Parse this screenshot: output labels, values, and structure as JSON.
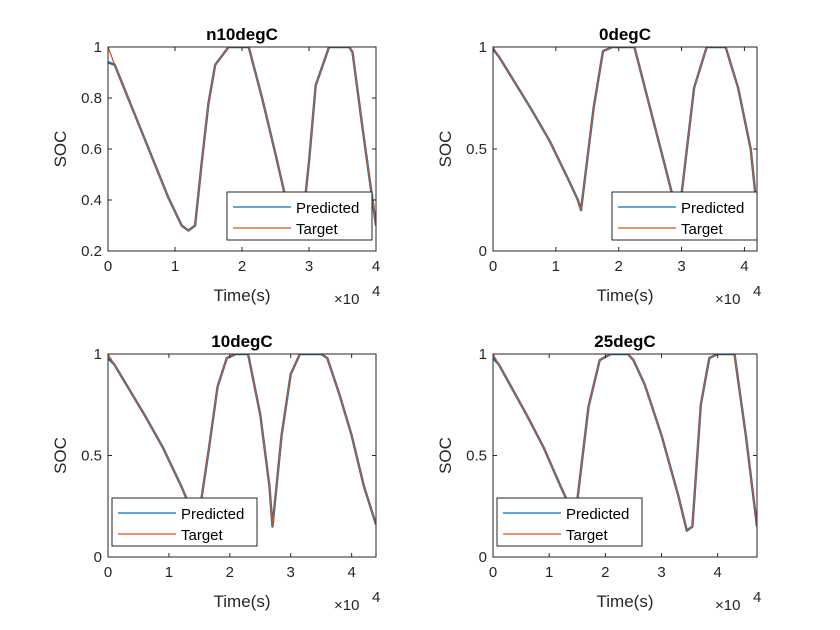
{
  "colors": {
    "predicted": "#0072BD",
    "target": "#D95319",
    "axis": "#262626"
  },
  "legend": {
    "entries": [
      "Predicted",
      "Target"
    ]
  },
  "chart_data": [
    {
      "type": "line",
      "title": "n10degC",
      "xlabel": "Time(s)",
      "ylabel": "SOC",
      "x_exponent_label": "×10",
      "x_exponent": "4",
      "xlim": [
        0,
        40000
      ],
      "ylim": [
        0.2,
        1.0
      ],
      "xticks": [
        0,
        10000,
        20000,
        30000,
        40000
      ],
      "xtick_labels": [
        "0",
        "1",
        "2",
        "3",
        "4"
      ],
      "yticks": [
        0.2,
        0.4,
        0.6,
        0.8,
        1.0
      ],
      "ytick_labels": [
        "0.2",
        "0.4",
        "0.6",
        "0.8",
        "1"
      ],
      "legend_position": "bottom-right",
      "series": [
        {
          "name": "Predicted",
          "x": [
            0,
            1000,
            3000,
            5000,
            7000,
            9000,
            11000,
            12000,
            13000,
            14000,
            15000,
            16000,
            18000,
            20000,
            21000,
            23000,
            25000,
            26500,
            28000,
            29000,
            30000,
            31000,
            33000,
            36000,
            36500,
            38000,
            40000
          ],
          "y": [
            0.94,
            0.93,
            0.8,
            0.67,
            0.54,
            0.41,
            0.3,
            0.28,
            0.3,
            0.55,
            0.78,
            0.93,
            1.0,
            1.0,
            1.0,
            0.8,
            0.58,
            0.41,
            0.3,
            0.3,
            0.55,
            0.85,
            1.0,
            1.0,
            0.98,
            0.68,
            0.3
          ]
        },
        {
          "name": "Target",
          "x": [
            0,
            1000,
            3000,
            5000,
            7000,
            9000,
            11000,
            12000,
            13000,
            14000,
            15000,
            16000,
            18000,
            20000,
            21000,
            23000,
            25000,
            26500,
            28000,
            29000,
            30000,
            31000,
            33000,
            36000,
            36500,
            38000,
            40000
          ],
          "y": [
            1.0,
            0.93,
            0.8,
            0.67,
            0.54,
            0.41,
            0.3,
            0.28,
            0.3,
            0.55,
            0.78,
            0.93,
            1.0,
            1.0,
            1.0,
            0.8,
            0.58,
            0.41,
            0.3,
            0.3,
            0.55,
            0.85,
            1.0,
            1.0,
            0.98,
            0.68,
            0.3
          ]
        }
      ]
    },
    {
      "type": "line",
      "title": "0degC",
      "xlabel": "Time(s)",
      "ylabel": "SOC",
      "x_exponent_label": "×10",
      "x_exponent": "4",
      "xlim": [
        0,
        42000
      ],
      "ylim": [
        0,
        1.0
      ],
      "xticks": [
        0,
        10000,
        20000,
        30000,
        40000
      ],
      "xtick_labels": [
        "0",
        "1",
        "2",
        "3",
        "4"
      ],
      "yticks": [
        0,
        0.5,
        1.0
      ],
      "ytick_labels": [
        "0",
        "0.5",
        "1"
      ],
      "legend_position": "bottom-right",
      "series": [
        {
          "name": "Predicted",
          "x": [
            0,
            1000,
            3000,
            6000,
            9000,
            12000,
            13500,
            14000,
            16000,
            17500,
            19000,
            21000,
            22500,
            25000,
            27500,
            28500,
            30000,
            32000,
            34000,
            36000,
            37000,
            39000,
            41000,
            42000
          ],
          "y": [
            0.99,
            0.95,
            0.85,
            0.7,
            0.54,
            0.35,
            0.25,
            0.2,
            0.7,
            0.98,
            1.0,
            1.0,
            1.0,
            0.7,
            0.4,
            0.28,
            0.28,
            0.8,
            1.0,
            1.0,
            1.0,
            0.8,
            0.5,
            0.2
          ]
        },
        {
          "name": "Target",
          "x": [
            0,
            1000,
            3000,
            6000,
            9000,
            12000,
            13500,
            14000,
            16000,
            17500,
            19000,
            21000,
            22500,
            25000,
            27500,
            28500,
            30000,
            32000,
            34000,
            36000,
            37000,
            39000,
            41000,
            42000
          ],
          "y": [
            1.0,
            0.95,
            0.85,
            0.7,
            0.54,
            0.35,
            0.25,
            0.2,
            0.7,
            0.98,
            1.0,
            1.0,
            1.0,
            0.7,
            0.4,
            0.28,
            0.28,
            0.8,
            1.0,
            1.0,
            1.0,
            0.8,
            0.5,
            0.2
          ]
        }
      ]
    },
    {
      "type": "line",
      "title": "10degC",
      "xlabel": "Time(s)",
      "ylabel": "SOC",
      "x_exponent_label": "×10",
      "x_exponent": "4",
      "xlim": [
        0,
        44000
      ],
      "ylim": [
        0,
        1.0
      ],
      "xticks": [
        0,
        10000,
        20000,
        30000,
        40000
      ],
      "xtick_labels": [
        "0",
        "1",
        "2",
        "3",
        "4"
      ],
      "yticks": [
        0,
        0.5,
        1.0
      ],
      "ytick_labels": [
        "0",
        "0.5",
        "1"
      ],
      "legend_position": "bottom-left",
      "series": [
        {
          "name": "Predicted",
          "x": [
            0,
            1000,
            3000,
            6000,
            9000,
            12000,
            13000,
            14000,
            15000,
            16500,
            18000,
            19500,
            21000,
            23000,
            25000,
            26500,
            27000,
            28500,
            30000,
            31500,
            33000,
            35000,
            36000,
            38000,
            40000,
            42000,
            44000
          ],
          "y": [
            0.98,
            0.95,
            0.85,
            0.7,
            0.54,
            0.35,
            0.28,
            0.25,
            0.22,
            0.52,
            0.84,
            0.98,
            1.0,
            1.0,
            0.7,
            0.35,
            0.15,
            0.6,
            0.9,
            1.0,
            1.0,
            1.0,
            0.98,
            0.8,
            0.6,
            0.35,
            0.16
          ]
        },
        {
          "name": "Target",
          "x": [
            0,
            1000,
            3000,
            6000,
            9000,
            12000,
            13000,
            14000,
            15000,
            16500,
            18000,
            19500,
            21000,
            23000,
            25000,
            26500,
            27000,
            28500,
            30000,
            31500,
            33000,
            35000,
            36000,
            38000,
            40000,
            42000,
            44000
          ],
          "y": [
            1.0,
            0.95,
            0.85,
            0.7,
            0.54,
            0.35,
            0.28,
            0.25,
            0.22,
            0.52,
            0.84,
            0.98,
            1.0,
            1.0,
            0.7,
            0.35,
            0.15,
            0.6,
            0.9,
            1.0,
            1.0,
            1.0,
            0.98,
            0.8,
            0.6,
            0.35,
            0.16
          ]
        }
      ]
    },
    {
      "type": "line",
      "title": "25degC",
      "xlabel": "Time(s)",
      "ylabel": "SOC",
      "x_exponent_label": "×10",
      "x_exponent": "4",
      "xlim": [
        0,
        47000
      ],
      "ylim": [
        0,
        1.0
      ],
      "xticks": [
        0,
        10000,
        20000,
        30000,
        40000
      ],
      "xtick_labels": [
        "0",
        "1",
        "2",
        "3",
        "4"
      ],
      "yticks": [
        0,
        0.5,
        1.0
      ],
      "ytick_labels": [
        "0",
        "0.5",
        "1"
      ],
      "legend_position": "bottom-left",
      "series": [
        {
          "name": "Predicted",
          "x": [
            0,
            1000,
            3000,
            6000,
            9000,
            12000,
            13500,
            15000,
            17000,
            19000,
            21000,
            24000,
            25000,
            27000,
            30000,
            33000,
            34500,
            35500,
            37000,
            38500,
            40000,
            43000,
            43500,
            45000,
            47000
          ],
          "y": [
            0.98,
            0.95,
            0.85,
            0.7,
            0.54,
            0.35,
            0.26,
            0.28,
            0.74,
            0.97,
            1.0,
            1.0,
            0.97,
            0.85,
            0.6,
            0.3,
            0.13,
            0.15,
            0.75,
            0.98,
            1.0,
            1.0,
            0.9,
            0.6,
            0.15
          ]
        },
        {
          "name": "Target",
          "x": [
            0,
            1000,
            3000,
            6000,
            9000,
            12000,
            13500,
            15000,
            17000,
            19000,
            21000,
            24000,
            25000,
            27000,
            30000,
            33000,
            34500,
            35500,
            37000,
            38500,
            40000,
            43000,
            43500,
            45000,
            47000
          ],
          "y": [
            1.0,
            0.95,
            0.85,
            0.7,
            0.54,
            0.35,
            0.26,
            0.28,
            0.74,
            0.97,
            1.0,
            1.0,
            0.97,
            0.85,
            0.6,
            0.3,
            0.13,
            0.15,
            0.75,
            0.98,
            1.0,
            1.0,
            0.9,
            0.6,
            0.15
          ]
        }
      ]
    }
  ]
}
